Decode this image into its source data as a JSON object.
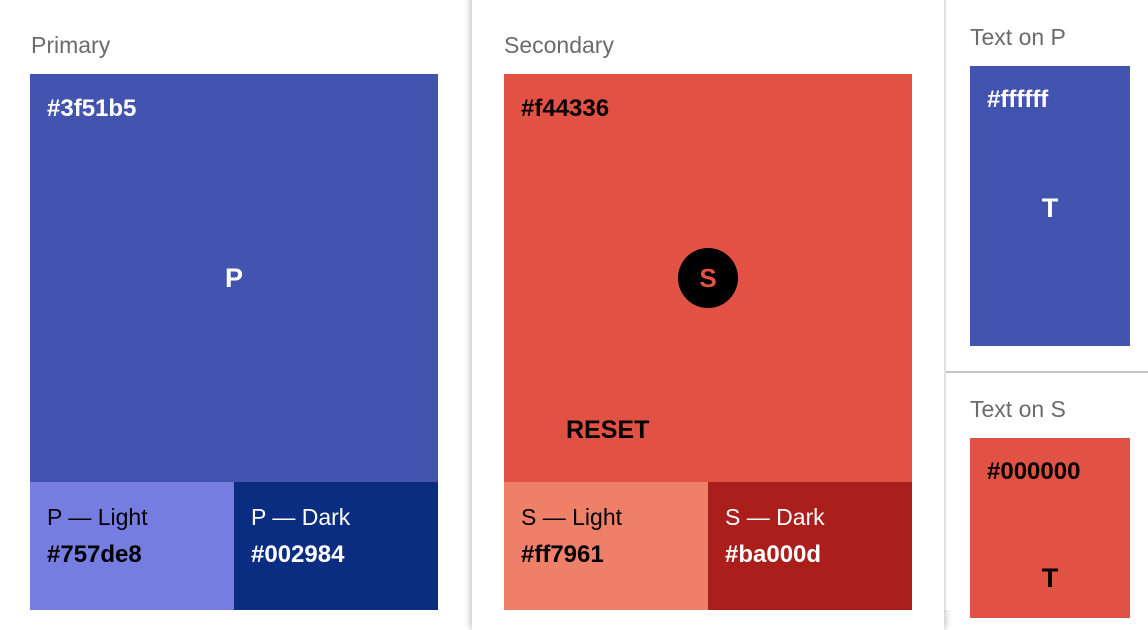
{
  "primary": {
    "title": "Primary",
    "main": {
      "hex": "#3f51b5",
      "letter": "P",
      "color": "#4253b0"
    },
    "light": {
      "label": "P — Light",
      "hex": "#757de8",
      "color": "#757de0"
    },
    "dark": {
      "label": "P — Dark",
      "hex": "#002984",
      "color": "#0a2d82"
    }
  },
  "secondary": {
    "title": "Secondary",
    "main": {
      "hex": "#f44336",
      "letter": "S",
      "color": "#e25244"
    },
    "reset_label": "RESET",
    "light": {
      "label": "S — Light",
      "hex": "#ff7961",
      "color": "#ee806a"
    },
    "dark": {
      "label": "S — Dark",
      "hex": "#ba000d",
      "color": "#aa1f1b"
    }
  },
  "text_on_p": {
    "title": "Text on P",
    "hex": "#ffffff",
    "letter": "T"
  },
  "text_on_s": {
    "title": "Text on S",
    "hex": "#000000",
    "letter": "T"
  }
}
